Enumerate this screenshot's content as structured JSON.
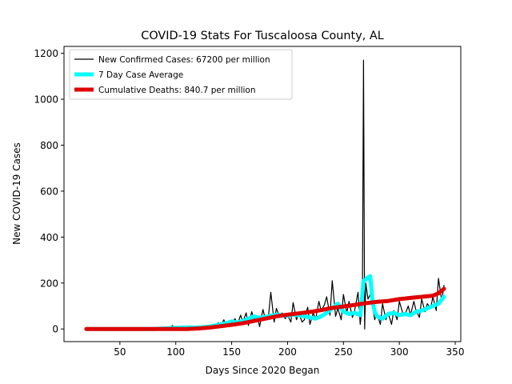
{
  "chart_data": {
    "type": "line",
    "title": "COVID-19 Stats For Tuscaloosa County, AL",
    "xlabel": "Days Since 2020 Began",
    "ylabel": "New COVID-19 Cases",
    "xlim": [
      0,
      355
    ],
    "ylim": [
      -55,
      1230
    ],
    "xticks": [
      50,
      100,
      150,
      200,
      250,
      300,
      350
    ],
    "yticks": [
      0,
      200,
      400,
      600,
      800,
      1000,
      1200
    ],
    "grid": false,
    "legend_position": "top-left",
    "series": [
      {
        "name": "New Confirmed Cases: 67200 per million",
        "color": "#000000",
        "x": [
          20,
          30,
          40,
          50,
          60,
          70,
          80,
          90,
          95,
          97,
          100,
          103,
          105,
          108,
          110,
          113,
          115,
          118,
          120,
          123,
          125,
          128,
          130,
          133,
          135,
          138,
          140,
          143,
          145,
          148,
          150,
          153,
          155,
          158,
          160,
          163,
          165,
          168,
          170,
          173,
          175,
          178,
          180,
          183,
          185,
          188,
          190,
          193,
          195,
          198,
          200,
          203,
          205,
          208,
          210,
          213,
          215,
          218,
          220,
          223,
          225,
          228,
          230,
          233,
          235,
          238,
          240,
          243,
          245,
          248,
          250,
          253,
          255,
          258,
          260,
          263,
          265,
          267,
          268,
          269,
          270,
          272,
          274,
          276,
          278,
          280,
          283,
          285,
          288,
          290,
          293,
          295,
          298,
          300,
          303,
          305,
          308,
          310,
          313,
          315,
          318,
          320,
          323,
          325,
          328,
          330,
          333,
          335,
          338,
          340
        ],
        "y": [
          0,
          0,
          0,
          0,
          0,
          0,
          0,
          0,
          6,
          15,
          2,
          10,
          0,
          12,
          3,
          8,
          10,
          0,
          5,
          12,
          2,
          15,
          8,
          20,
          5,
          28,
          12,
          40,
          18,
          35,
          25,
          45,
          20,
          60,
          30,
          70,
          15,
          75,
          40,
          55,
          10,
          85,
          45,
          60,
          160,
          30,
          90,
          50,
          70,
          45,
          60,
          30,
          115,
          40,
          70,
          30,
          40,
          95,
          20,
          70,
          40,
          120,
          80,
          105,
          140,
          60,
          210,
          55,
          90,
          40,
          150,
          70,
          120,
          50,
          80,
          160,
          20,
          120,
          1170,
          0,
          200,
          130,
          150,
          100,
          40,
          70,
          20,
          110,
          40,
          70,
          20,
          80,
          40,
          120,
          70,
          60,
          100,
          60,
          120,
          80,
          50,
          130,
          75,
          110,
          90,
          140,
          80,
          220,
          120,
          190
        ]
      },
      {
        "name": "7 Day Case Average",
        "color": "#00ffff",
        "x": [
          20,
          40,
          60,
          80,
          95,
          100,
          105,
          110,
          115,
          120,
          125,
          130,
          135,
          140,
          145,
          150,
          155,
          160,
          165,
          170,
          175,
          180,
          185,
          190,
          195,
          200,
          205,
          210,
          215,
          220,
          225,
          230,
          235,
          240,
          245,
          250,
          255,
          260,
          265,
          266,
          268,
          270,
          272,
          274,
          276,
          278,
          280,
          285,
          290,
          295,
          300,
          305,
          310,
          315,
          320,
          325,
          330,
          335,
          340
        ],
        "y": [
          0,
          0,
          0,
          0,
          4,
          5,
          6,
          7,
          6,
          6,
          8,
          10,
          15,
          20,
          25,
          33,
          28,
          35,
          45,
          55,
          48,
          52,
          58,
          62,
          60,
          58,
          62,
          60,
          55,
          50,
          45,
          55,
          70,
          90,
          110,
          75,
          65,
          70,
          60,
          100,
          210,
          215,
          225,
          230,
          120,
          75,
          55,
          45,
          65,
          70,
          60,
          65,
          60,
          75,
          80,
          90,
          100,
          110,
          140
        ]
      },
      {
        "name": "Cumulative Deaths: 840.7 per million",
        "color": "#e00000",
        "x": [
          20,
          40,
          60,
          80,
          100,
          110,
          120,
          130,
          140,
          150,
          160,
          170,
          180,
          190,
          200,
          210,
          220,
          230,
          240,
          250,
          260,
          270,
          280,
          290,
          300,
          310,
          320,
          330,
          335,
          340
        ],
        "y": [
          0,
          0,
          0,
          0,
          0,
          0,
          2,
          6,
          12,
          18,
          25,
          35,
          45,
          55,
          62,
          68,
          74,
          82,
          92,
          98,
          105,
          112,
          118,
          122,
          130,
          135,
          140,
          145,
          155,
          175
        ]
      }
    ]
  }
}
